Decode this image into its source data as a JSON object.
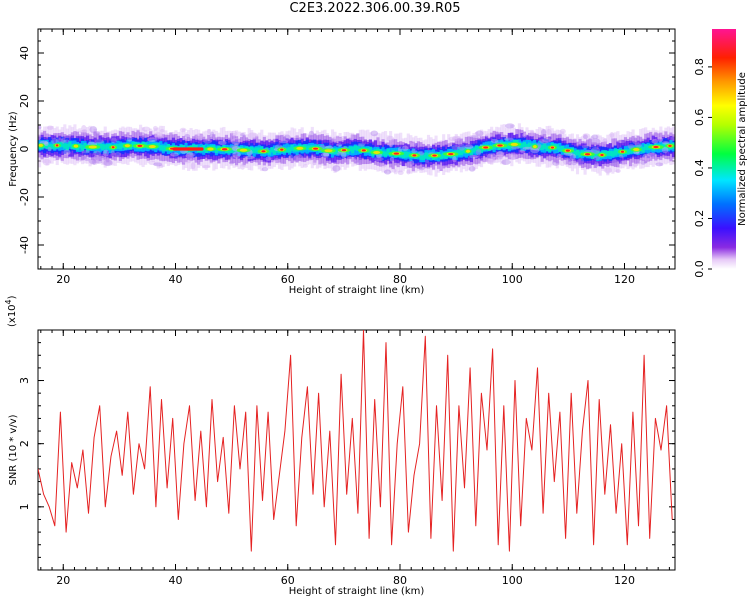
{
  "title": "C2E3.2022.306.00.39.R05",
  "colors": {
    "snr_line": "#e52222",
    "axis": "#000000"
  },
  "chart_data": [
    {
      "type": "heatmap",
      "name": "frequency-spectrogram",
      "xlabel": "Height of straight line (km)",
      "ylabel": "Frequency (Hz)",
      "xlim": [
        15.5,
        129
      ],
      "ylim": [
        -50,
        50
      ],
      "xticks": [
        20,
        40,
        60,
        80,
        100,
        120
      ],
      "yticks": [
        40,
        20,
        0,
        -20,
        -40
      ],
      "grid": false,
      "colorbar": {
        "label": "Normalized spectral amplitude",
        "range": [
          0.0,
          0.95
        ],
        "ticks": [
          "0.0",
          "0.2",
          "0.4",
          "0.6",
          "0.8"
        ],
        "colormap": "rainbow"
      },
      "ridge": {
        "x": [
          16,
          20,
          24,
          28,
          32,
          36,
          40,
          44,
          48,
          52,
          56,
          60,
          64,
          68,
          72,
          76,
          80,
          84,
          88,
          92,
          96,
          100,
          104,
          108,
          112,
          116,
          120,
          124,
          129
        ],
        "y": [
          1.5,
          1.5,
          1,
          0.5,
          1.5,
          1,
          0,
          0,
          0,
          -0.5,
          -1,
          0,
          0.5,
          -1,
          0,
          -1.5,
          -2,
          -3,
          -2.5,
          -1,
          1,
          2,
          1,
          0.5,
          -2,
          -2.5,
          -1,
          0.5,
          1.5
        ]
      }
    },
    {
      "type": "line",
      "name": "snr",
      "xlabel": "Height of straight line (km)",
      "ylabel": "SNR (10 * v/v)",
      "scale_label": "(x10",
      "scale_exponent": "4",
      "xlim": [
        15.5,
        129
      ],
      "ylim": [
        0,
        3.8
      ],
      "xticks": [
        20,
        40,
        60,
        80,
        100,
        120
      ],
      "yticks": [
        1,
        2,
        3
      ],
      "grid": false,
      "series": [
        {
          "x": [
            15.5,
            16.5,
            17.5,
            18.5,
            19.5,
            20.5,
            21.5,
            22.5,
            23.5,
            24.5,
            25.5,
            26.5,
            27.5,
            28.5,
            29.5,
            30.5,
            31.5,
            32.5,
            33.5,
            34.5,
            35.5,
            36.5,
            37.5,
            38.5,
            39.5,
            40.5,
            41.5,
            42.5,
            43.5,
            44.5,
            45.5,
            46.5,
            47.5,
            48.5,
            49.5,
            50.5,
            51.5,
            52.5,
            53.5,
            54.5,
            55.5,
            56.5,
            57.5,
            58.5,
            59.5,
            60.5,
            61.5,
            62.5,
            63.5,
            64.5,
            65.5,
            66.5,
            67.5,
            68.5,
            69.5,
            70.5,
            71.5,
            72.5,
            73.5,
            74.5,
            75.5,
            76.5,
            77.5,
            78.5,
            79.5,
            80.5,
            81.5,
            82.5,
            83.5,
            84.5,
            85.5,
            86.5,
            87.5,
            88.5,
            89.5,
            90.5,
            91.5,
            92.5,
            93.5,
            94.5,
            95.5,
            96.5,
            97.5,
            98.5,
            99.5,
            100.5,
            101.5,
            102.5,
            103.5,
            104.5,
            105.5,
            106.5,
            107.5,
            108.5,
            109.5,
            110.5,
            111.5,
            112.5,
            113.5,
            114.5,
            115.5,
            116.5,
            117.5,
            118.5,
            119.5,
            120.5,
            121.5,
            122.5,
            123.5,
            124.5,
            125.5,
            126.5,
            127.5,
            128.5
          ],
          "values": [
            1.6,
            1.2,
            1.0,
            0.7,
            2.5,
            0.6,
            1.7,
            1.3,
            1.9,
            0.9,
            2.1,
            2.6,
            1.0,
            1.8,
            2.2,
            1.5,
            2.5,
            1.2,
            2.0,
            1.6,
            2.9,
            1.0,
            2.7,
            1.3,
            2.4,
            0.8,
            2.0,
            2.6,
            1.1,
            2.2,
            1.0,
            2.7,
            1.4,
            2.1,
            0.9,
            2.6,
            1.6,
            2.5,
            0.3,
            2.6,
            1.1,
            2.5,
            0.8,
            1.5,
            2.2,
            3.4,
            0.7,
            2.1,
            2.9,
            1.2,
            2.8,
            1.0,
            2.2,
            0.4,
            3.1,
            1.2,
            2.4,
            0.9,
            3.8,
            0.5,
            2.7,
            1.0,
            3.6,
            0.4,
            2.0,
            2.9,
            0.6,
            1.5,
            2.0,
            3.7,
            0.5,
            2.6,
            1.1,
            3.4,
            0.3,
            2.6,
            1.3,
            3.2,
            0.7,
            2.8,
            1.9,
            3.5,
            0.4,
            2.6,
            0.3,
            3.0,
            0.7,
            2.4,
            1.9,
            3.2,
            0.9,
            2.8,
            1.4,
            2.5,
            0.5,
            2.8,
            0.9,
            2.2,
            3.0,
            0.4,
            2.7,
            1.2,
            2.3,
            0.9,
            2.0,
            0.4,
            2.5,
            0.7,
            3.4,
            0.5,
            2.4,
            1.9,
            2.6,
            0.8
          ]
        }
      ]
    }
  ]
}
